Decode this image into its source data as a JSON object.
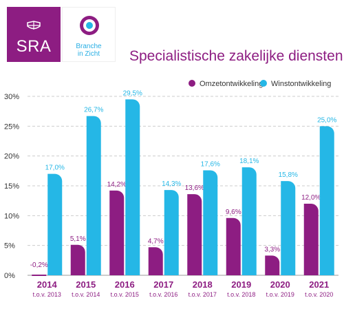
{
  "logos": {
    "sra_text": "SRA",
    "branche_line1": "Branche",
    "branche_line2": "in Zicht"
  },
  "colors": {
    "purple": "#8d1d82",
    "cyan": "#25b7e6",
    "grid": "#cccccc",
    "axis_text": "#333333"
  },
  "chart_data": {
    "type": "bar",
    "title": "Specialistische zakelijke diensten",
    "categories": [
      "2014",
      "2015",
      "2016",
      "2017",
      "2018",
      "2019",
      "2020",
      "2021"
    ],
    "sublabels": [
      "t.o.v. 2013",
      "t.o.v. 2014",
      "t.o.v. 2015",
      "t.o.v. 2016",
      "t.o.v. 2017",
      "t.o.v. 2018",
      "t.o.v. 2019",
      "t.o.v. 2020"
    ],
    "series": [
      {
        "name": "Omzetontwikkeling",
        "color": "#8d1d82",
        "values": [
          -0.2,
          5.1,
          14.2,
          4.7,
          13.6,
          9.6,
          3.3,
          12.0
        ],
        "labels": [
          "-0,2%",
          "5,1%",
          "14,2%",
          "4,7%",
          "13,6%",
          "9,6%",
          "3,3%",
          "12,0%"
        ]
      },
      {
        "name": "Winstontwikkeling",
        "color": "#25b7e6",
        "values": [
          17.0,
          26.7,
          29.5,
          14.3,
          17.6,
          18.1,
          15.8,
          25.0
        ],
        "labels": [
          "17,0%",
          "26,7%",
          "29,5%",
          "14,3%",
          "17,6%",
          "18,1%",
          "15,8%",
          "25,0%"
        ]
      }
    ],
    "yticks": [
      "0%",
      "5%",
      "10%",
      "15%",
      "20%",
      "25%",
      "30%"
    ],
    "ylim": [
      0,
      30
    ],
    "grid": true,
    "legend": "top-right"
  }
}
